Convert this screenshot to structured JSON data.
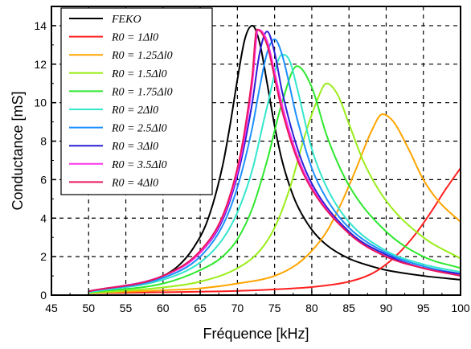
{
  "chart_data": {
    "type": "line",
    "xlabel": "Fréquence [kHz]",
    "ylabel": "Conductance [mS]",
    "xlim": [
      45,
      100
    ],
    "ylim": [
      0,
      15
    ],
    "xticks": [
      45,
      50,
      55,
      60,
      65,
      70,
      75,
      80,
      85,
      90,
      95,
      100
    ],
    "yticks": [
      0,
      2,
      4,
      6,
      8,
      10,
      12,
      14
    ],
    "grid": "dashed",
    "legend_position": "top-left",
    "series": [
      {
        "name": "FEKO",
        "color": "#000000",
        "x": [
          50,
          55,
          60,
          62,
          64,
          66,
          68,
          69,
          70,
          71,
          72,
          73,
          74,
          75,
          76,
          77,
          78,
          80,
          82,
          85,
          88,
          90,
          95,
          100
        ],
        "y": [
          0.2,
          0.45,
          1.0,
          1.5,
          2.4,
          3.9,
          6.7,
          8.8,
          11.2,
          13.3,
          14.0,
          13.1,
          11.0,
          8.8,
          7.0,
          5.7,
          4.7,
          3.4,
          2.6,
          1.9,
          1.5,
          1.3,
          1.0,
          0.8
        ]
      },
      {
        "name": "R0 = 1Δl0",
        "color": "#ff2020",
        "x": [
          50,
          60,
          70,
          75,
          80,
          85,
          88,
          90,
          92,
          94,
          96,
          98,
          100
        ],
        "y": [
          0.1,
          0.15,
          0.22,
          0.3,
          0.42,
          0.7,
          1.1,
          1.6,
          2.3,
          3.2,
          4.3,
          5.5,
          6.6
        ]
      },
      {
        "name": "R0 = 1.25Δl0",
        "color": "#ffa500",
        "x": [
          50,
          60,
          65,
          70,
          75,
          78,
          80,
          82,
          84,
          86,
          88,
          89.5,
          91,
          93,
          95,
          97,
          100
        ],
        "y": [
          0.1,
          0.25,
          0.35,
          0.6,
          1.0,
          1.6,
          2.3,
          3.3,
          4.8,
          6.6,
          8.5,
          9.4,
          9.0,
          7.6,
          6.0,
          4.9,
          3.8
        ]
      },
      {
        "name": "R0 = 1.5Δl0",
        "color": "#9aee1a",
        "x": [
          50,
          60,
          65,
          70,
          73,
          75,
          77,
          79,
          80.5,
          82,
          83.5,
          85,
          87,
          90,
          95,
          100
        ],
        "y": [
          0.1,
          0.4,
          0.7,
          1.4,
          2.3,
          3.5,
          5.5,
          8.2,
          9.9,
          11.0,
          10.4,
          8.9,
          6.9,
          4.9,
          3.0,
          1.9
        ]
      },
      {
        "name": "R0 = 1.75Δl0",
        "color": "#2ee82e",
        "x": [
          50,
          60,
          65,
          68,
          70,
          72,
          74,
          76,
          78,
          80,
          82,
          85,
          90,
          95,
          100
        ],
        "y": [
          0.15,
          0.6,
          1.3,
          2.0,
          2.9,
          4.5,
          7.0,
          10.0,
          11.9,
          10.8,
          8.3,
          5.7,
          3.3,
          2.0,
          1.4
        ]
      },
      {
        "name": "R0 = 2Δl0",
        "color": "#33e6cc",
        "x": [
          50,
          60,
          65,
          68,
          70,
          72,
          74,
          76,
          77,
          78,
          80,
          82,
          85,
          90,
          95,
          100
        ],
        "y": [
          0.15,
          0.8,
          1.7,
          2.9,
          4.3,
          6.5,
          9.8,
          12.5,
          12.2,
          10.8,
          7.6,
          5.6,
          3.8,
          2.3,
          1.6,
          1.2
        ]
      },
      {
        "name": "R0 = 2.5Δl0",
        "color": "#1e90ff",
        "x": [
          50,
          60,
          65,
          68,
          70,
          72,
          73,
          74,
          75,
          76,
          78,
          80,
          82,
          85,
          90,
          95,
          100
        ],
        "y": [
          0.2,
          0.9,
          2.0,
          3.6,
          5.6,
          8.7,
          10.8,
          12.6,
          13.3,
          12.5,
          9.2,
          6.6,
          5.0,
          3.5,
          2.2,
          1.5,
          1.1
        ]
      },
      {
        "name": "R0 = 3Δl0",
        "color": "#2a1fd6",
        "x": [
          50,
          60,
          65,
          68,
          70,
          71,
          72,
          73,
          74,
          75,
          76,
          78,
          80,
          85,
          90,
          95,
          100
        ],
        "y": [
          0.2,
          1.0,
          2.2,
          3.9,
          6.2,
          7.9,
          10.0,
          12.6,
          13.7,
          12.6,
          10.6,
          7.7,
          5.8,
          3.3,
          2.1,
          1.4,
          1.1
        ]
      },
      {
        "name": "R0 = 3.5Δl0",
        "color": "#ff33ee",
        "x": [
          50,
          60,
          65,
          68,
          70,
          71,
          72,
          72.8,
          74,
          75,
          76,
          78,
          80,
          85,
          90,
          95,
          100
        ],
        "y": [
          0.2,
          1.0,
          2.2,
          4.0,
          6.4,
          8.3,
          11.0,
          13.8,
          13.2,
          11.6,
          9.9,
          7.3,
          5.6,
          3.2,
          2.0,
          1.4,
          1.0
        ]
      },
      {
        "name": "R0 = 4Δl0",
        "color": "#e8175d",
        "x": [
          50,
          60,
          65,
          68,
          70,
          71,
          72,
          72.6,
          74,
          75,
          76,
          78,
          80,
          85,
          90,
          95,
          100
        ],
        "y": [
          0.2,
          1.0,
          2.3,
          4.1,
          6.6,
          8.6,
          11.4,
          13.8,
          13.0,
          11.3,
          9.6,
          7.1,
          5.5,
          3.2,
          2.0,
          1.4,
          1.0
        ]
      }
    ]
  }
}
